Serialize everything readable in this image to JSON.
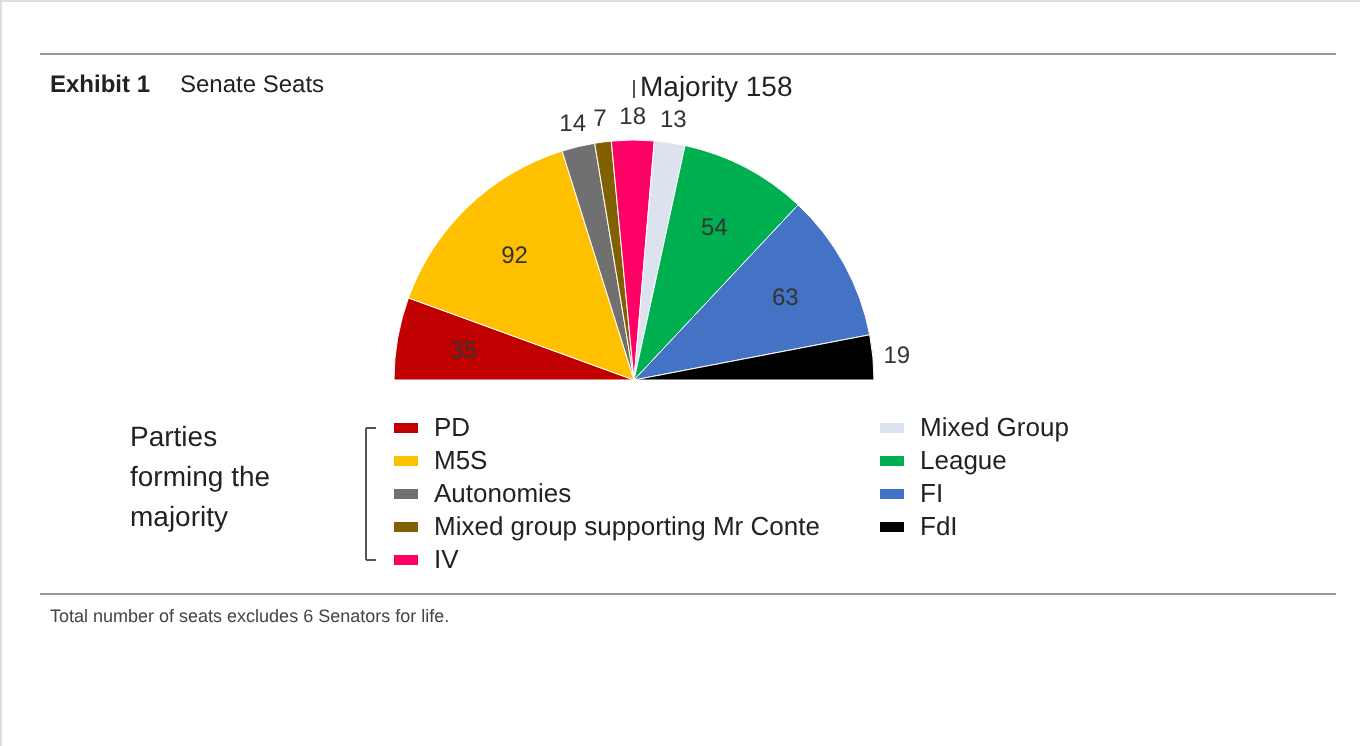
{
  "chart_data": {
    "type": "pie",
    "title": "Exhibit 1",
    "subtitle": "Senate Seats",
    "categories": [
      "PD",
      "M5S",
      "Autonomies",
      "Mixed group supporting Mr Conte",
      "IV",
      "Mixed Group",
      "League",
      "FI",
      "FdI"
    ],
    "values": [
      35,
      92,
      14,
      7,
      18,
      13,
      54,
      63,
      19
    ],
    "colors": [
      "#c00000",
      "#ffc000",
      "#707070",
      "#806000",
      "#ff0066",
      "#dde3ee",
      "#00b050",
      "#4472c4",
      "#000000"
    ],
    "data_labels": true,
    "legend": "bottom",
    "annotations": [
      "Majority 158",
      "Parties forming the majority",
      "Total number of seats excludes 6 Senators for life."
    ]
  }
}
